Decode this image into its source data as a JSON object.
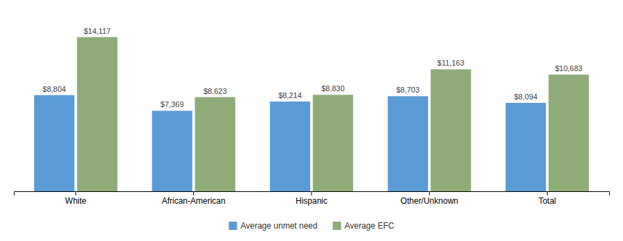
{
  "chart_data": {
    "type": "bar",
    "categories": [
      "White",
      "African-American",
      "Hispanic",
      "Other/Unknown",
      "Total"
    ],
    "series": [
      {
        "name": "Average unmet need",
        "color": "#5b9bd5",
        "values": [
          8804,
          7369,
          8214,
          8703,
          8094
        ],
        "value_labels": [
          "$8,804",
          "$7,369",
          "$8,214",
          "$8,703",
          "$8,094"
        ]
      },
      {
        "name": "Average EFC",
        "color": "#8fac78",
        "values": [
          14117,
          8623,
          8830,
          11163,
          10683
        ],
        "value_labels": [
          "$14,117",
          "$8,623",
          "$8,830",
          "$11,163",
          "$10,683"
        ]
      }
    ],
    "ylim": [
      0,
      16500
    ],
    "data_labels": true,
    "legend": "bottom",
    "tick_labels": "x"
  }
}
